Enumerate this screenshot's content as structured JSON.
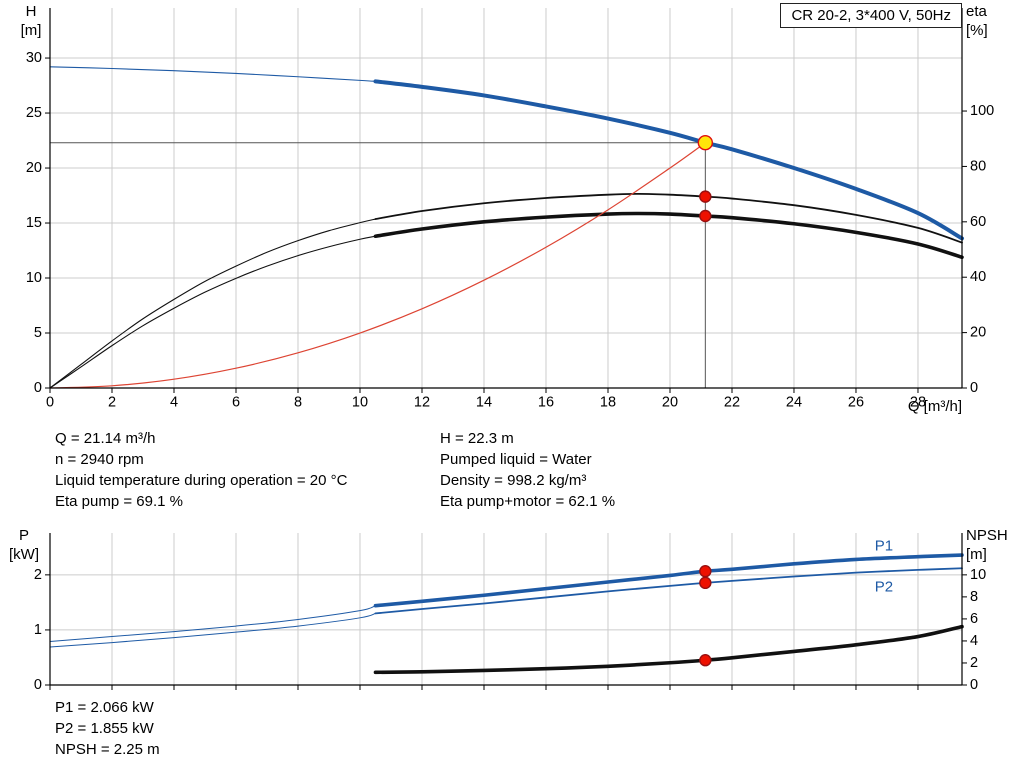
{
  "title": "CR 20-2, 3*400 V, 50Hz",
  "axes": {
    "h": {
      "name": "H",
      "unit": "[m]"
    },
    "eta": {
      "name": "eta",
      "unit": "[%]"
    },
    "q": {
      "label": "Q [m³/h]"
    },
    "p": {
      "name": "P",
      "unit": "[kW]"
    },
    "npsh": {
      "name": "NPSH",
      "unit": "[m]"
    }
  },
  "info": {
    "left": [
      "Q = 21.14 m³/h",
      "n = 2940 rpm",
      "Liquid temperature during operation = 20 °C",
      "Eta pump = 69.1 %"
    ],
    "right": [
      "H = 22.3 m",
      "Pumped liquid = Water",
      "Density = 998.2 kg/m³",
      "Eta pump+motor = 62.1 %"
    ]
  },
  "footer": [
    "P1 = 2.066 kW",
    "P2 = 1.855 kW",
    "NPSH = 2.25 m"
  ],
  "colors": {
    "curve_blue": "#1e5aa5",
    "curve_black": "#111111",
    "curve_red": "#dd4433",
    "marker_red": "#ee1100",
    "duty_yellow": "#ffe60a",
    "grid": "#cccccc"
  },
  "chart_data": [
    {
      "type": "line",
      "name": "hq-eta-chart",
      "x_axis": {
        "min": 0,
        "max": 29.42,
        "ticks": [
          0,
          2,
          4,
          6,
          8,
          10,
          12,
          14,
          16,
          18,
          20,
          22,
          24,
          26,
          28
        ],
        "show_labels": true
      },
      "left_axis": {
        "min": 0,
        "max": 34.55,
        "ticks": [
          0,
          5,
          10,
          15,
          20,
          25,
          30
        ]
      },
      "right_axis": {
        "min": 0,
        "max": 137.2,
        "ticks": [
          0,
          20,
          40,
          60,
          80,
          100
        ]
      },
      "series": [
        {
          "name": "head-reserve",
          "axis": "left",
          "color": "#1e5aa5",
          "width": 1.1,
          "points": [
            [
              0,
              29.2
            ],
            [
              2,
              29.05
            ],
            [
              4,
              28.85
            ],
            [
              6,
              28.6
            ],
            [
              8,
              28.3
            ],
            [
              10,
              27.97
            ],
            [
              10.5,
              27.88
            ]
          ]
        },
        {
          "name": "head",
          "axis": "left",
          "color": "#1e5aa5",
          "width": 4,
          "points": [
            [
              10.5,
              27.88
            ],
            [
              12,
              27.38
            ],
            [
              14,
              26.6
            ],
            [
              16,
              25.6
            ],
            [
              18,
              24.5
            ],
            [
              20,
              23.2
            ],
            [
              21.14,
              22.3
            ],
            [
              22,
              21.7
            ],
            [
              24,
              20.0
            ],
            [
              26,
              18.1
            ],
            [
              28,
              15.9
            ],
            [
              29.42,
              13.6
            ]
          ]
        },
        {
          "name": "eta-pump-reserve",
          "axis": "right",
          "color": "#111111",
          "width": 1.1,
          "points": [
            [
              0,
              0
            ],
            [
              1,
              8.5
            ],
            [
              2,
              17
            ],
            [
              3,
              25
            ],
            [
              4,
              32
            ],
            [
              5,
              38.5
            ],
            [
              6,
              44
            ],
            [
              7,
              49
            ],
            [
              8,
              53.2
            ],
            [
              9,
              56.8
            ],
            [
              10,
              59.7
            ],
            [
              10.5,
              61
            ]
          ]
        },
        {
          "name": "eta-pump",
          "axis": "right",
          "color": "#111111",
          "width": 1.8,
          "points": [
            [
              10.5,
              61
            ],
            [
              12,
              63.9
            ],
            [
              14,
              66.7
            ],
            [
              16,
              68.6
            ],
            [
              18,
              69.8
            ],
            [
              19,
              70.1
            ],
            [
              20,
              69.8
            ],
            [
              21.14,
              69.1
            ],
            [
              22,
              68.4
            ],
            [
              24,
              66
            ],
            [
              26,
              62.5
            ],
            [
              28,
              57.8
            ],
            [
              29.42,
              52.5
            ]
          ]
        },
        {
          "name": "eta-pump-motor-reserve",
          "axis": "right",
          "color": "#111111",
          "width": 1.1,
          "points": [
            [
              0,
              0
            ],
            [
              1,
              7.6
            ],
            [
              2,
              15.3
            ],
            [
              3,
              22.5
            ],
            [
              4,
              28.8
            ],
            [
              5,
              34.6
            ],
            [
              6,
              39.6
            ],
            [
              7,
              44
            ],
            [
              8,
              47.8
            ],
            [
              9,
              51
            ],
            [
              10,
              53.7
            ],
            [
              10.5,
              54.8
            ]
          ]
        },
        {
          "name": "eta-pump-motor",
          "axis": "right",
          "color": "#111111",
          "width": 3.6,
          "points": [
            [
              10.5,
              54.8
            ],
            [
              12,
              57.4
            ],
            [
              14,
              60
            ],
            [
              16,
              61.7
            ],
            [
              18,
              62.8
            ],
            [
              19,
              63
            ],
            [
              20,
              62.8
            ],
            [
              21.14,
              62.1
            ],
            [
              22,
              61.5
            ],
            [
              24,
              59.3
            ],
            [
              26,
              56.2
            ],
            [
              28,
              52
            ],
            [
              29.42,
              47.2
            ]
          ]
        },
        {
          "name": "system-curve",
          "axis": "left",
          "color": "#dd4433",
          "width": 1.2,
          "points": [
            [
              0,
              0
            ],
            [
              2,
              0.2
            ],
            [
              4,
              0.8
            ],
            [
              6,
              1.8
            ],
            [
              8,
              3.2
            ],
            [
              10,
              5.0
            ],
            [
              12,
              7.2
            ],
            [
              14,
              9.8
            ],
            [
              16,
              12.8
            ],
            [
              18,
              16.2
            ],
            [
              20,
              20.0
            ],
            [
              21.14,
              22.3
            ]
          ]
        }
      ],
      "ref_lines": [
        {
          "name": "duty-head-line",
          "axis": "left",
          "color": "#555555",
          "width": 1,
          "points": [
            [
              0,
              22.3
            ],
            [
              21.14,
              22.3
            ]
          ]
        },
        {
          "name": "duty-flow-line",
          "axis": "left",
          "color": "#555555",
          "width": 1,
          "points": [
            [
              21.14,
              22.3
            ],
            [
              21.14,
              0
            ]
          ]
        }
      ],
      "markers": [
        {
          "name": "eta-pump-point",
          "x": 21.14,
          "y": 69.1,
          "axis": "right",
          "r": 5.5,
          "fill": "#ee1100",
          "stroke": "#991111"
        },
        {
          "name": "eta-pump-motor-point",
          "x": 21.14,
          "y": 62.1,
          "axis": "right",
          "r": 5.5,
          "fill": "#ee1100",
          "stroke": "#991111"
        },
        {
          "name": "duty-point",
          "x": 21.14,
          "y": 22.3,
          "axis": "left",
          "r": 7,
          "fill": "#ffe60a",
          "stroke": "#e01010"
        }
      ]
    },
    {
      "type": "line",
      "name": "power-npsh-chart",
      "x_axis": {
        "min": 0,
        "max": 29.42,
        "ticks": [
          0,
          2,
          4,
          6,
          8,
          10,
          12,
          14,
          16,
          18,
          20,
          22,
          24,
          26,
          28
        ],
        "show_labels": false
      },
      "left_axis": {
        "min": 0,
        "max": 2.76,
        "ticks": [
          0,
          1,
          2
        ]
      },
      "right_axis": {
        "min": 0,
        "max": 13.8,
        "ticks": [
          0,
          2,
          4,
          6,
          8,
          10
        ]
      },
      "series": [
        {
          "name": "p1-reserve",
          "axis": "left",
          "color": "#1e5aa5",
          "width": 1,
          "points": [
            [
              0,
              0.79
            ],
            [
              2,
              0.88
            ],
            [
              4,
              0.97
            ],
            [
              6,
              1.07
            ],
            [
              8,
              1.19
            ],
            [
              10,
              1.35
            ],
            [
              10.5,
              1.44
            ]
          ]
        },
        {
          "name": "p1",
          "axis": "left",
          "color": "#1e5aa5",
          "width": 3.6,
          "points": [
            [
              10.5,
              1.44
            ],
            [
              12,
              1.52
            ],
            [
              14,
              1.63
            ],
            [
              16,
              1.75
            ],
            [
              18,
              1.87
            ],
            [
              20,
              1.99
            ],
            [
              21.14,
              2.066
            ],
            [
              22,
              2.1
            ],
            [
              24,
              2.2
            ],
            [
              26,
              2.28
            ],
            [
              28,
              2.33
            ],
            [
              29.42,
              2.36
            ]
          ]
        },
        {
          "name": "p2-reserve",
          "axis": "left",
          "color": "#1e5aa5",
          "width": 1,
          "points": [
            [
              0,
              0.69
            ],
            [
              2,
              0.77
            ],
            [
              4,
              0.86
            ],
            [
              6,
              0.96
            ],
            [
              8,
              1.07
            ],
            [
              10,
              1.22
            ],
            [
              10.5,
              1.3
            ]
          ]
        },
        {
          "name": "p2",
          "axis": "left",
          "color": "#1e5aa5",
          "width": 1.8,
          "points": [
            [
              10.5,
              1.3
            ],
            [
              12,
              1.38
            ],
            [
              14,
              1.48
            ],
            [
              16,
              1.59
            ],
            [
              18,
              1.7
            ],
            [
              20,
              1.8
            ],
            [
              21.14,
              1.855
            ],
            [
              22,
              1.89
            ],
            [
              24,
              1.97
            ],
            [
              26,
              2.04
            ],
            [
              28,
              2.09
            ],
            [
              29.42,
              2.12
            ]
          ]
        },
        {
          "name": "npsh",
          "axis": "right",
          "color": "#111111",
          "width": 3.6,
          "points": [
            [
              10.5,
              1.15
            ],
            [
              12,
              1.2
            ],
            [
              14,
              1.32
            ],
            [
              16,
              1.48
            ],
            [
              18,
              1.7
            ],
            [
              20,
              2.02
            ],
            [
              21.14,
              2.25
            ],
            [
              22,
              2.47
            ],
            [
              24,
              3.05
            ],
            [
              26,
              3.65
            ],
            [
              28,
              4.4
            ],
            [
              29.42,
              5.3
            ]
          ]
        }
      ],
      "markers": [
        {
          "name": "p1-point",
          "x": 21.14,
          "y": 2.066,
          "axis": "left",
          "r": 5.5,
          "fill": "#ee1100",
          "stroke": "#991111"
        },
        {
          "name": "p2-point",
          "x": 21.14,
          "y": 1.855,
          "axis": "left",
          "r": 5.5,
          "fill": "#ee1100",
          "stroke": "#991111"
        },
        {
          "name": "npsh-point",
          "x": 21.14,
          "y": 2.25,
          "axis": "right",
          "r": 5.5,
          "fill": "#ee1100",
          "stroke": "#991111"
        }
      ],
      "labels": [
        {
          "name": "p1-label",
          "text": "P1",
          "x": 26.9,
          "y": 2.52,
          "axis": "left",
          "color": "#1e5aa5"
        },
        {
          "name": "p2-label",
          "text": "P2",
          "x": 26.9,
          "y": 1.78,
          "axis": "left",
          "color": "#1e5aa5"
        }
      ]
    }
  ]
}
